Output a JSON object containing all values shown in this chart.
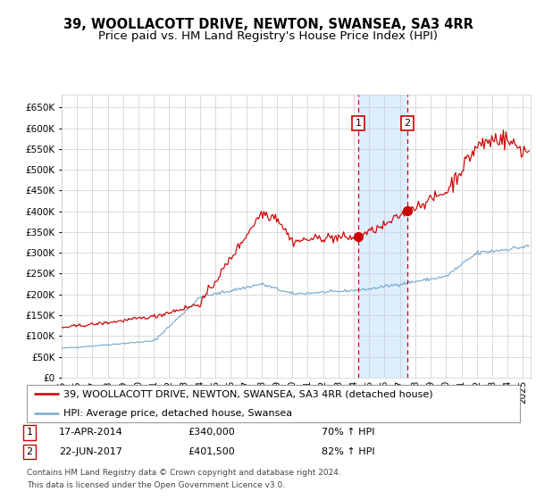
{
  "title": "39, WOOLLACOTT DRIVE, NEWTON, SWANSEA, SA3 4RR",
  "subtitle": "Price paid vs. HM Land Registry's House Price Index (HPI)",
  "ylim": [
    0,
    680000
  ],
  "yticks": [
    0,
    50000,
    100000,
    150000,
    200000,
    250000,
    300000,
    350000,
    400000,
    450000,
    500000,
    550000,
    600000,
    650000
  ],
  "xlim_start": 1995.0,
  "xlim_end": 2025.5,
  "xtick_years": [
    1995,
    1996,
    1997,
    1998,
    1999,
    2000,
    2001,
    2002,
    2003,
    2004,
    2005,
    2006,
    2007,
    2008,
    2009,
    2010,
    2011,
    2012,
    2013,
    2014,
    2015,
    2016,
    2017,
    2018,
    2019,
    2020,
    2021,
    2022,
    2023,
    2024,
    2025
  ],
  "red_line_color": "#cc0000",
  "blue_line_color": "#7aaace",
  "sale1_x": 2014.29,
  "sale1_y": 340000,
  "sale2_x": 2017.47,
  "sale2_y": 401500,
  "marker_color": "#cc0000",
  "shading_color": "#ddeeff",
  "vline_color": "#cc0000",
  "grid_color": "#cccccc",
  "background_color": "#ffffff",
  "legend_label_red": "39, WOOLLACOTT DRIVE, NEWTON, SWANSEA, SA3 4RR (detached house)",
  "legend_label_blue": "HPI: Average price, detached house, Swansea",
  "sale1_date": "17-APR-2014",
  "sale1_price": "£340,000",
  "sale1_hpi": "70% ↑ HPI",
  "sale2_date": "22-JUN-2017",
  "sale2_price": "£401,500",
  "sale2_hpi": "82% ↑ HPI",
  "footer_line1": "Contains HM Land Registry data © Crown copyright and database right 2024.",
  "footer_line2": "This data is licensed under the Open Government Licence v3.0.",
  "title_fontsize": 10.5,
  "subtitle_fontsize": 9.5,
  "tick_fontsize": 7.5,
  "legend_fontsize": 8,
  "info_fontsize": 8,
  "footer_fontsize": 6.5
}
